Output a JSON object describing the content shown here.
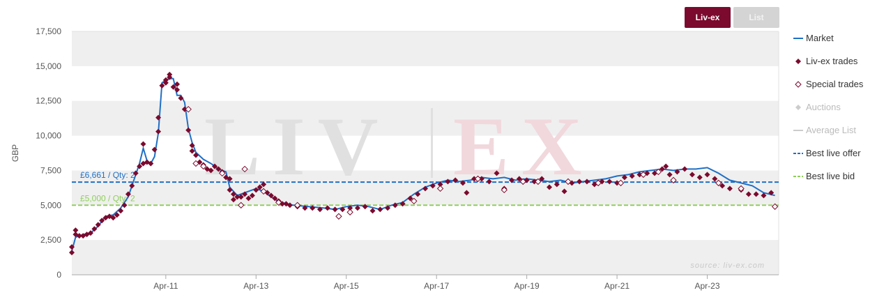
{
  "toggle": {
    "livex_label": "Liv-ex",
    "list_label": "List"
  },
  "watermark": {
    "left": "LIV",
    "right": "EX"
  },
  "source_label": "source: liv-ex.com",
  "colors": {
    "market": "#1f6fc5",
    "trades": "#7b0a2e",
    "offer": "#1f6fc5",
    "bid": "#8fcf5a",
    "band": "#efefef",
    "watermark_grey": "#e0e0e0",
    "watermark_red": "#f1d8dd"
  },
  "chart_data": {
    "type": "line",
    "ylabel": "GBP",
    "ylim": [
      0,
      17500
    ],
    "y_ticks": [
      0,
      2500,
      5000,
      7500,
      10000,
      12500,
      15000,
      17500
    ],
    "y_tick_labels": [
      "0",
      "2,500",
      "5,000",
      "7,500",
      "10,000",
      "12,500",
      "15,000",
      "17,500"
    ],
    "x_range": [
      "2009-03",
      "2024-11"
    ],
    "x_ticks": [
      {
        "date": "2011-04",
        "label": "Apr-11"
      },
      {
        "date": "2013-04",
        "label": "Apr-13"
      },
      {
        "date": "2015-04",
        "label": "Apr-15"
      },
      {
        "date": "2017-04",
        "label": "Apr-17"
      },
      {
        "date": "2019-04",
        "label": "Apr-19"
      },
      {
        "date": "2021-04",
        "label": "Apr-21"
      },
      {
        "date": "2023-04",
        "label": "Apr-23"
      }
    ],
    "grid": "alternating bands",
    "legend_position": "right",
    "legend": [
      {
        "label": "Market",
        "symbol": "line",
        "enabled": true
      },
      {
        "label": "Liv-ex trades",
        "symbol": "diamond-filled",
        "enabled": true
      },
      {
        "label": "Special trades",
        "symbol": "diamond-open",
        "enabled": true
      },
      {
        "label": "Auctions",
        "symbol": "diamond-grey",
        "enabled": false
      },
      {
        "label": "Average List",
        "symbol": "line-grey",
        "enabled": false
      },
      {
        "label": "Best live offer",
        "symbol": "dashed-blue",
        "enabled": true
      },
      {
        "label": "Best live bid",
        "symbol": "dashed-green",
        "enabled": true
      }
    ],
    "series": [
      {
        "name": "Market",
        "points": [
          [
            "2009-03",
            1700
          ],
          [
            "2009-04",
            2700
          ],
          [
            "2009-06",
            2900
          ],
          [
            "2009-08",
            3000
          ],
          [
            "2009-10",
            3500
          ],
          [
            "2009-12",
            4200
          ],
          [
            "2010-02",
            4300
          ],
          [
            "2010-04",
            4800
          ],
          [
            "2010-06",
            5600
          ],
          [
            "2010-08",
            7200
          ],
          [
            "2010-09",
            8000
          ],
          [
            "2010-10",
            9100
          ],
          [
            "2010-11",
            8200
          ],
          [
            "2010-12",
            8000
          ],
          [
            "2011-01",
            8500
          ],
          [
            "2011-02",
            10200
          ],
          [
            "2011-03",
            13800
          ],
          [
            "2011-04",
            14000
          ],
          [
            "2011-05",
            14100
          ],
          [
            "2011-06",
            14100
          ],
          [
            "2011-07",
            12900
          ],
          [
            "2011-08",
            12900
          ],
          [
            "2011-09",
            12400
          ],
          [
            "2011-10",
            10500
          ],
          [
            "2011-11",
            9500
          ],
          [
            "2011-12",
            8800
          ],
          [
            "2012-02",
            8300
          ],
          [
            "2012-04",
            8000
          ],
          [
            "2012-06",
            7600
          ],
          [
            "2012-08",
            7400
          ],
          [
            "2012-09",
            6300
          ],
          [
            "2012-11",
            5700
          ],
          [
            "2013-01",
            5900
          ],
          [
            "2013-04",
            6200
          ],
          [
            "2013-06",
            6000
          ],
          [
            "2013-08",
            5600
          ],
          [
            "2013-10",
            5300
          ],
          [
            "2013-12",
            5100
          ],
          [
            "2014-02",
            5000
          ],
          [
            "2014-06",
            4900
          ],
          [
            "2014-10",
            4800
          ],
          [
            "2015-01",
            4700
          ],
          [
            "2015-04",
            4900
          ],
          [
            "2015-07",
            5000
          ],
          [
            "2015-10",
            4900
          ],
          [
            "2016-01",
            4700
          ],
          [
            "2016-04",
            5000
          ],
          [
            "2016-07",
            5200
          ],
          [
            "2016-10",
            5800
          ],
          [
            "2017-01",
            6300
          ],
          [
            "2017-04",
            6600
          ],
          [
            "2017-07",
            6800
          ],
          [
            "2017-10",
            6700
          ],
          [
            "2018-01",
            6800
          ],
          [
            "2018-04",
            7000
          ],
          [
            "2018-07",
            6900
          ],
          [
            "2018-10",
            7000
          ],
          [
            "2019-01",
            6800
          ],
          [
            "2019-04",
            6900
          ],
          [
            "2019-07",
            6800
          ],
          [
            "2019-10",
            6700
          ],
          [
            "2020-01",
            6800
          ],
          [
            "2020-04",
            6600
          ],
          [
            "2020-07",
            6700
          ],
          [
            "2020-10",
            6800
          ],
          [
            "2021-01",
            6900
          ],
          [
            "2021-04",
            7100
          ],
          [
            "2021-07",
            7200
          ],
          [
            "2021-10",
            7400
          ],
          [
            "2022-01",
            7500
          ],
          [
            "2022-04",
            7600
          ],
          [
            "2022-07",
            7500
          ],
          [
            "2022-10",
            7600
          ],
          [
            "2023-01",
            7600
          ],
          [
            "2023-04",
            7700
          ],
          [
            "2023-07",
            7300
          ],
          [
            "2023-10",
            6800
          ],
          [
            "2024-01",
            6600
          ],
          [
            "2024-04",
            6400
          ],
          [
            "2024-07",
            5900
          ],
          [
            "2024-10",
            5700
          ]
        ]
      },
      {
        "name": "Liv-ex trades",
        "points": [
          [
            "2009-03",
            1600
          ],
          [
            "2009-03",
            2000
          ],
          [
            "2009-04",
            2900
          ],
          [
            "2009-04",
            3200
          ],
          [
            "2009-05",
            2800
          ],
          [
            "2009-06",
            2800
          ],
          [
            "2009-07",
            2900
          ],
          [
            "2009-08",
            3000
          ],
          [
            "2009-09",
            3300
          ],
          [
            "2009-10",
            3600
          ],
          [
            "2009-11",
            3900
          ],
          [
            "2009-12",
            4100
          ],
          [
            "2010-01",
            4200
          ],
          [
            "2010-02",
            4100
          ],
          [
            "2010-03",
            4300
          ],
          [
            "2010-04",
            4600
          ],
          [
            "2010-05",
            5000
          ],
          [
            "2010-06",
            5800
          ],
          [
            "2010-07",
            6400
          ],
          [
            "2010-08",
            7300
          ],
          [
            "2010-09",
            7800
          ],
          [
            "2010-10",
            9400
          ],
          [
            "2010-10",
            8000
          ],
          [
            "2010-11",
            8100
          ],
          [
            "2010-12",
            8000
          ],
          [
            "2011-01",
            9000
          ],
          [
            "2011-02",
            10300
          ],
          [
            "2011-02",
            11300
          ],
          [
            "2011-03",
            13600
          ],
          [
            "2011-04",
            14000
          ],
          [
            "2011-04",
            13800
          ],
          [
            "2011-05",
            14200
          ],
          [
            "2011-05",
            14400
          ],
          [
            "2011-06",
            13500
          ],
          [
            "2011-07",
            13300
          ],
          [
            "2011-07",
            13700
          ],
          [
            "2011-08",
            12700
          ],
          [
            "2011-09",
            11900
          ],
          [
            "2011-10",
            10400
          ],
          [
            "2011-11",
            9300
          ],
          [
            "2011-11",
            8900
          ],
          [
            "2011-12",
            8600
          ],
          [
            "2012-01",
            8100
          ],
          [
            "2012-02",
            7900
          ],
          [
            "2012-03",
            7600
          ],
          [
            "2012-04",
            7500
          ],
          [
            "2012-05",
            7800
          ],
          [
            "2012-06",
            7600
          ],
          [
            "2012-07",
            7400
          ],
          [
            "2012-08",
            7000
          ],
          [
            "2012-09",
            6900
          ],
          [
            "2012-09",
            6100
          ],
          [
            "2012-10",
            5800
          ],
          [
            "2012-10",
            5400
          ],
          [
            "2012-11",
            5600
          ],
          [
            "2012-12",
            5600
          ],
          [
            "2013-01",
            5800
          ],
          [
            "2013-02",
            5500
          ],
          [
            "2013-03",
            5700
          ],
          [
            "2013-04",
            6100
          ],
          [
            "2013-05",
            6300
          ],
          [
            "2013-06",
            6500
          ],
          [
            "2013-07",
            5900
          ],
          [
            "2013-08",
            5700
          ],
          [
            "2013-09",
            5500
          ],
          [
            "2013-10",
            5300
          ],
          [
            "2013-11",
            5100
          ],
          [
            "2013-12",
            5100
          ],
          [
            "2014-01",
            5000
          ],
          [
            "2014-03",
            4900
          ],
          [
            "2014-05",
            4800
          ],
          [
            "2014-07",
            4800
          ],
          [
            "2014-09",
            4700
          ],
          [
            "2014-11",
            4800
          ],
          [
            "2015-01",
            4700
          ],
          [
            "2015-03",
            4700
          ],
          [
            "2015-05",
            4800
          ],
          [
            "2015-07",
            4800
          ],
          [
            "2015-09",
            4900
          ],
          [
            "2015-11",
            4600
          ],
          [
            "2016-01",
            4700
          ],
          [
            "2016-03",
            4800
          ],
          [
            "2016-05",
            5000
          ],
          [
            "2016-07",
            5100
          ],
          [
            "2016-09",
            5500
          ],
          [
            "2016-11",
            5800
          ],
          [
            "2017-01",
            6200
          ],
          [
            "2017-03",
            6400
          ],
          [
            "2017-05",
            6500
          ],
          [
            "2017-07",
            6700
          ],
          [
            "2017-09",
            6800
          ],
          [
            "2017-11",
            6600
          ],
          [
            "2017-12",
            5900
          ],
          [
            "2018-02",
            6900
          ],
          [
            "2018-04",
            6900
          ],
          [
            "2018-06",
            6700
          ],
          [
            "2018-08",
            7300
          ],
          [
            "2018-10",
            6200
          ],
          [
            "2018-12",
            6800
          ],
          [
            "2019-02",
            6900
          ],
          [
            "2019-04",
            6800
          ],
          [
            "2019-06",
            6700
          ],
          [
            "2019-08",
            6900
          ],
          [
            "2019-10",
            6300
          ],
          [
            "2019-12",
            6500
          ],
          [
            "2020-02",
            6000
          ],
          [
            "2020-04",
            6600
          ],
          [
            "2020-06",
            6700
          ],
          [
            "2020-08",
            6700
          ],
          [
            "2020-10",
            6500
          ],
          [
            "2020-12",
            6700
          ],
          [
            "2021-02",
            6700
          ],
          [
            "2021-04",
            6600
          ],
          [
            "2021-06",
            7000
          ],
          [
            "2021-08",
            7100
          ],
          [
            "2021-10",
            7200
          ],
          [
            "2021-12",
            7300
          ],
          [
            "2022-02",
            7300
          ],
          [
            "2022-04",
            7600
          ],
          [
            "2022-05",
            7800
          ],
          [
            "2022-06",
            7200
          ],
          [
            "2022-08",
            7400
          ],
          [
            "2022-10",
            7600
          ],
          [
            "2022-12",
            7200
          ],
          [
            "2023-02",
            7000
          ],
          [
            "2023-04",
            7200
          ],
          [
            "2023-06",
            6900
          ],
          [
            "2023-08",
            6400
          ],
          [
            "2023-10",
            6200
          ],
          [
            "2024-01",
            6100
          ],
          [
            "2024-03",
            5800
          ],
          [
            "2024-05",
            5800
          ],
          [
            "2024-07",
            5700
          ],
          [
            "2024-09",
            5900
          ]
        ]
      },
      {
        "name": "Special trades",
        "points": [
          [
            "2011-10",
            11900
          ],
          [
            "2011-12",
            8000
          ],
          [
            "2012-02",
            7800
          ],
          [
            "2012-07",
            7300
          ],
          [
            "2012-12",
            5000
          ],
          [
            "2013-01",
            7600
          ],
          [
            "2013-06",
            6000
          ],
          [
            "2013-10",
            5200
          ],
          [
            "2014-03",
            5000
          ],
          [
            "2015-02",
            4200
          ],
          [
            "2015-05",
            4500
          ],
          [
            "2016-10",
            5300
          ],
          [
            "2017-05",
            6200
          ],
          [
            "2018-03",
            6900
          ],
          [
            "2018-10",
            6100
          ],
          [
            "2019-03",
            6700
          ],
          [
            "2019-07",
            6700
          ],
          [
            "2020-03",
            6700
          ],
          [
            "2020-11",
            6600
          ],
          [
            "2021-05",
            6600
          ],
          [
            "2021-11",
            7200
          ],
          [
            "2022-03",
            7400
          ],
          [
            "2022-07",
            6800
          ],
          [
            "2023-07",
            6600
          ],
          [
            "2024-01",
            6200
          ],
          [
            "2024-10",
            4900
          ]
        ]
      }
    ],
    "reference_lines": [
      {
        "name": "Best live offer",
        "y": 6661,
        "label": "£6,661 / Qty: 2"
      },
      {
        "name": "Best live bid",
        "y": 5000,
        "label": "£5,000 / Qty: 2"
      }
    ]
  }
}
